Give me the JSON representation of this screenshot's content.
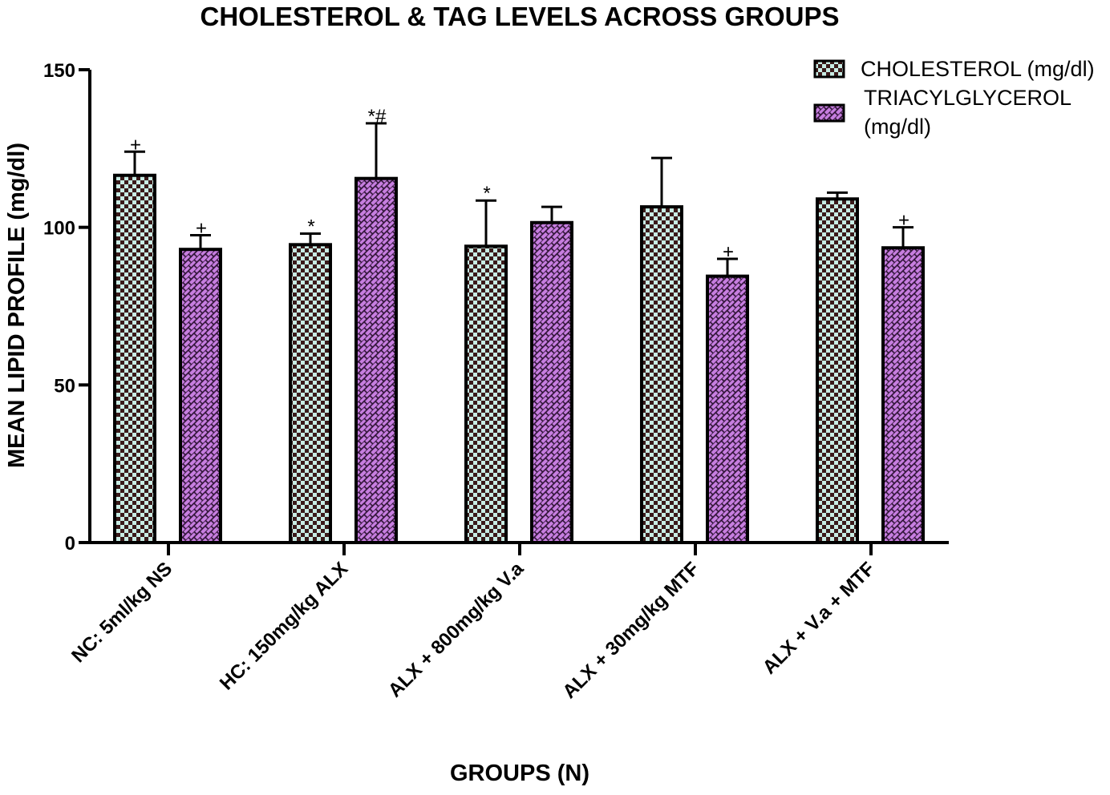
{
  "chart_data": {
    "type": "bar",
    "title": "CHOLESTEROL & TAG LEVELS ACROSS GROUPS",
    "xlabel": "GROUPS (N)",
    "ylabel": "MEAN LIPID PROFILE (mg/dl)",
    "ylim": [
      0,
      150
    ],
    "yticks": [
      0,
      50,
      100,
      150
    ],
    "grid": false,
    "legend_position": "top-right",
    "categories": [
      "NC: 5ml/kg NS",
      "HC: 150mg/kg ALX",
      "ALX + 800mg/kg V.a",
      "ALX + 30mg/kg MTF",
      "ALX + V.a + MTF"
    ],
    "series": [
      {
        "name": "CHOLESTEROL (mg/dl)",
        "pattern": "checker",
        "colors": {
          "dark": "#3a1a1a",
          "light": "#c8ece4"
        },
        "values": [
          116.5,
          94.5,
          94,
          106.5,
          109
        ],
        "errors": [
          7.5,
          3.5,
          14.5,
          15.5,
          2
        ],
        "annotations": [
          "+",
          "*",
          "*",
          "",
          ""
        ]
      },
      {
        "name": "TRIACYLGLYCEROL (mg/dl)",
        "pattern": "diagonal-brick",
        "colors": {
          "base": "#c77ee0",
          "line": "#2a1030"
        },
        "values": [
          93,
          115.5,
          101.5,
          84.5,
          93.5
        ],
        "errors": [
          4.5,
          17.5,
          5,
          5.5,
          6.5
        ],
        "annotations": [
          "+",
          "*#",
          "",
          "+",
          "+"
        ]
      }
    ]
  },
  "legend": {
    "item1_label": "CHOLESTEROL (mg/dl)",
    "item2_line1": "TRIACYLGLYCEROL",
    "item2_line2": "(mg/dl)"
  }
}
